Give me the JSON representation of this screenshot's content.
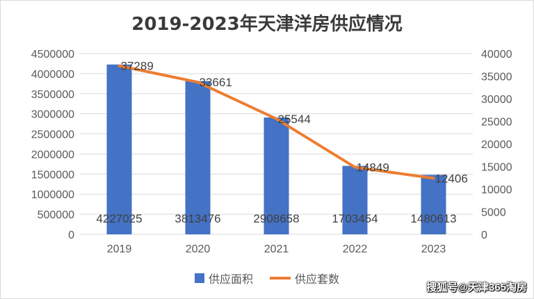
{
  "title": "2019-2023年天津洋房供应情况",
  "watermark": "搜狐号@天津365淘房",
  "legend": {
    "bar_label": "供应面积",
    "line_label": "供应套数"
  },
  "colors": {
    "bar": "#4472c4",
    "line": "#ed7d31",
    "grid": "#d9d9d9"
  },
  "chart_data": {
    "type": "bar",
    "title": "2019-2023年天津洋房供应情况",
    "categories": [
      "2019",
      "2020",
      "2021",
      "2022",
      "2023"
    ],
    "series": [
      {
        "name": "供应面积",
        "type": "bar",
        "axis": "left",
        "values": [
          4227025,
          3813476,
          2908658,
          1703454,
          1480613
        ]
      },
      {
        "name": "供应套数",
        "type": "line",
        "axis": "right",
        "values": [
          37289,
          33661,
          25544,
          14849,
          12406
        ]
      }
    ],
    "y_left": {
      "min": 0,
      "max": 4500000,
      "step": 500000
    },
    "y_right": {
      "min": 0,
      "max": 40000,
      "step": 5000
    },
    "grid": true,
    "legend_position": "bottom"
  }
}
